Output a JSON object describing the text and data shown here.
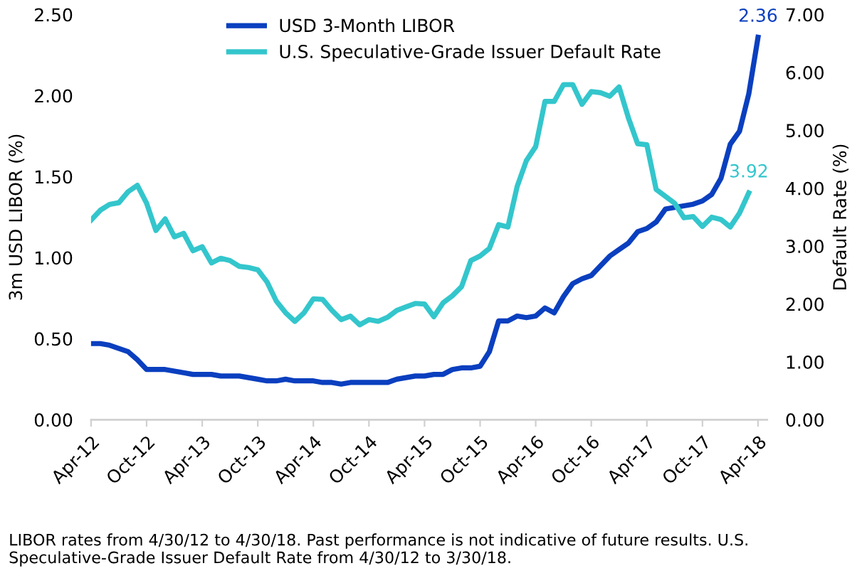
{
  "chart_data": {
    "type": "line",
    "x": [
      "2012-04",
      "2012-05",
      "2012-06",
      "2012-07",
      "2012-08",
      "2012-09",
      "2012-10",
      "2012-11",
      "2012-12",
      "2013-01",
      "2013-02",
      "2013-03",
      "2013-04",
      "2013-05",
      "2013-06",
      "2013-07",
      "2013-08",
      "2013-09",
      "2013-10",
      "2013-11",
      "2013-12",
      "2014-01",
      "2014-02",
      "2014-03",
      "2014-04",
      "2014-05",
      "2014-06",
      "2014-07",
      "2014-08",
      "2014-09",
      "2014-10",
      "2014-11",
      "2014-12",
      "2015-01",
      "2015-02",
      "2015-03",
      "2015-04",
      "2015-05",
      "2015-06",
      "2015-07",
      "2015-08",
      "2015-09",
      "2015-10",
      "2015-11",
      "2015-12",
      "2016-01",
      "2016-02",
      "2016-03",
      "2016-04",
      "2016-05",
      "2016-06",
      "2016-07",
      "2016-08",
      "2016-09",
      "2016-10",
      "2016-11",
      "2016-12",
      "2017-01",
      "2017-02",
      "2017-03",
      "2017-04",
      "2017-05",
      "2017-06",
      "2017-07",
      "2017-08",
      "2017-09",
      "2017-10",
      "2017-11",
      "2017-12",
      "2018-01",
      "2018-02",
      "2018-03",
      "2018-04"
    ],
    "xlim": [
      "2012-04",
      "2018-05"
    ],
    "xticks": [
      {
        "value": "2012-04",
        "label": "Apr-12"
      },
      {
        "value": "2012-10",
        "label": "Oct-12"
      },
      {
        "value": "2013-04",
        "label": "Apr-13"
      },
      {
        "value": "2013-10",
        "label": "Oct-13"
      },
      {
        "value": "2014-04",
        "label": "Apr-14"
      },
      {
        "value": "2014-10",
        "label": "Oct-14"
      },
      {
        "value": "2015-04",
        "label": "Apr-15"
      },
      {
        "value": "2015-10",
        "label": "Oct-15"
      },
      {
        "value": "2016-04",
        "label": "Apr-16"
      },
      {
        "value": "2016-10",
        "label": "Oct-16"
      },
      {
        "value": "2017-04",
        "label": "Apr-17"
      },
      {
        "value": "2017-10",
        "label": "Oct-17"
      },
      {
        "value": "2018-04",
        "label": "Apr-18"
      }
    ],
    "ylabel": "3m USD LIBOR (%)",
    "ylim": [
      0,
      2.5
    ],
    "yticks": [
      {
        "value": 0,
        "label": "0.00"
      },
      {
        "value": 0.5,
        "label": "0.50"
      },
      {
        "value": 1,
        "label": "1.00"
      },
      {
        "value": 1.5,
        "label": "1.50"
      },
      {
        "value": 2,
        "label": "2.00"
      },
      {
        "value": 2.5,
        "label": "2.50"
      }
    ],
    "y2label": "Default Rate (%)",
    "y2lim": [
      0,
      7
    ],
    "y2ticks": [
      {
        "value": 0,
        "label": "0.00"
      },
      {
        "value": 1,
        "label": "1.00"
      },
      {
        "value": 2,
        "label": "2.00"
      },
      {
        "value": 3,
        "label": "3.00"
      },
      {
        "value": 4,
        "label": "4.00"
      },
      {
        "value": 5,
        "label": "5.00"
      },
      {
        "value": 6,
        "label": "6.00"
      },
      {
        "value": 7,
        "label": "7.00"
      }
    ],
    "grid": false,
    "legend": "top left",
    "marker": "none",
    "line_style": "solid",
    "series": [
      {
        "name": "USD 3-Month LIBOR",
        "color": "#0a3fbf",
        "axis": "y",
        "values": [
          0.47,
          0.47,
          0.46,
          0.44,
          0.42,
          0.37,
          0.31,
          0.31,
          0.31,
          0.3,
          0.29,
          0.28,
          0.28,
          0.28,
          0.27,
          0.27,
          0.27,
          0.26,
          0.25,
          0.24,
          0.24,
          0.25,
          0.24,
          0.24,
          0.24,
          0.23,
          0.23,
          0.22,
          0.23,
          0.23,
          0.23,
          0.23,
          0.23,
          0.25,
          0.26,
          0.27,
          0.27,
          0.28,
          0.28,
          0.31,
          0.32,
          0.32,
          0.33,
          0.42,
          0.61,
          0.61,
          0.64,
          0.63,
          0.64,
          0.69,
          0.66,
          0.76,
          0.84,
          0.87,
          0.89,
          0.95,
          1.01,
          1.05,
          1.09,
          1.16,
          1.18,
          1.22,
          1.3,
          1.31,
          1.32,
          1.33,
          1.35,
          1.39,
          1.49,
          1.7,
          1.78,
          2.01,
          2.36
        ],
        "value_labels": [
          null,
          null,
          null,
          null,
          null,
          null,
          null,
          null,
          null,
          null,
          null,
          null,
          null,
          null,
          null,
          null,
          null,
          null,
          null,
          null,
          null,
          null,
          null,
          null,
          null,
          null,
          null,
          null,
          null,
          null,
          null,
          null,
          null,
          null,
          null,
          null,
          null,
          null,
          null,
          null,
          null,
          null,
          null,
          null,
          null,
          null,
          null,
          null,
          null,
          null,
          null,
          null,
          null,
          null,
          null,
          null,
          null,
          null,
          null,
          null,
          null,
          null,
          null,
          null,
          null,
          null,
          null,
          null,
          null,
          null,
          null,
          null,
          "2.36"
        ]
      },
      {
        "name": "U.S. Speculative-Grade Issuer Default Rate",
        "color": "#33c6cc",
        "axis": "y2",
        "values": [
          3.45,
          3.62,
          3.72,
          3.75,
          3.94,
          4.05,
          3.74,
          3.27,
          3.47,
          3.16,
          3.22,
          2.92,
          2.99,
          2.71,
          2.79,
          2.75,
          2.65,
          2.63,
          2.59,
          2.38,
          2.05,
          1.85,
          1.7,
          1.85,
          2.09,
          2.08,
          1.89,
          1.73,
          1.79,
          1.64,
          1.73,
          1.7,
          1.77,
          1.89,
          1.95,
          2.01,
          2.0,
          1.78,
          2.02,
          2.14,
          2.3,
          2.75,
          2.83,
          2.96,
          3.37,
          3.33,
          4.03,
          4.48,
          4.72,
          5.5,
          5.5,
          5.79,
          5.79,
          5.45,
          5.67,
          5.65,
          5.59,
          5.75,
          5.22,
          4.77,
          4.75,
          3.98,
          3.86,
          3.74,
          3.49,
          3.51,
          3.34,
          3.5,
          3.46,
          3.33,
          3.57,
          3.92,
          null
        ],
        "value_labels": [
          null,
          null,
          null,
          null,
          null,
          null,
          null,
          null,
          null,
          null,
          null,
          null,
          null,
          null,
          null,
          null,
          null,
          null,
          null,
          null,
          null,
          null,
          null,
          null,
          null,
          null,
          null,
          null,
          null,
          null,
          null,
          null,
          null,
          null,
          null,
          null,
          null,
          null,
          null,
          null,
          null,
          null,
          null,
          null,
          null,
          null,
          null,
          null,
          null,
          null,
          null,
          null,
          null,
          null,
          null,
          null,
          null,
          null,
          null,
          null,
          null,
          null,
          null,
          null,
          null,
          null,
          null,
          null,
          null,
          null,
          null,
          "3.92",
          null
        ]
      }
    ],
    "annotations": [
      "LIBOR rates from 4/30/12 to 4/30/18. Past performance is not indicative of future results. U.S. Speculative-Grade Issuer Default Rate from 4/30/12 to 3/30/18."
    ]
  }
}
